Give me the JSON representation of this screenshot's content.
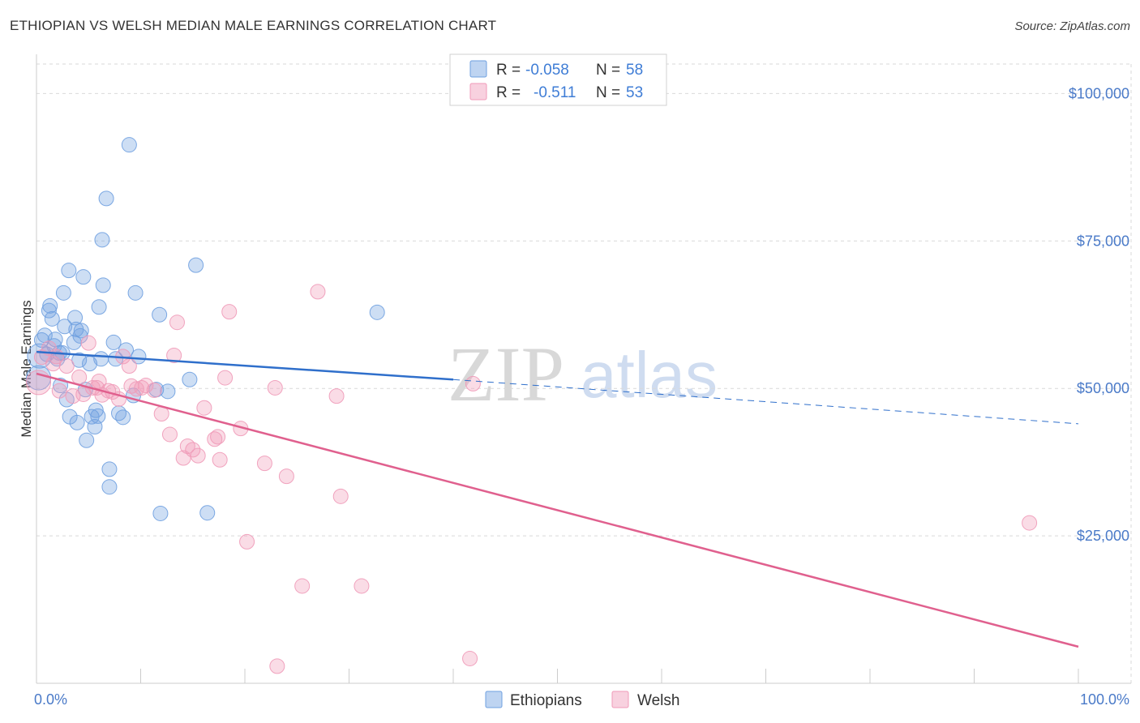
{
  "header": {
    "title": "ETHIOPIAN VS WELSH MEDIAN MALE EARNINGS CORRELATION CHART",
    "source": "Source: ZipAtlas.com"
  },
  "watermark": {
    "zip": "ZIP",
    "atlas": "atlas"
  },
  "colors": {
    "ethiopians": "#6fa0e0",
    "ethiopians_line": "#2f6fcb",
    "welsh": "#f09ab8",
    "welsh_line": "#e0608e",
    "grid": "#d9d9d9",
    "tick_text": "#4a7ac8"
  },
  "legend": {
    "r_label": "R =",
    "n_label": "N =",
    "rows": [
      {
        "series": "Ethiopians",
        "r": "-0.058",
        "n": "58"
      },
      {
        "series": "Welsh",
        "r": "-0.511",
        "n": "53"
      }
    ]
  },
  "chart_data": {
    "type": "scatter",
    "title": "ETHIOPIAN VS WELSH MEDIAN MALE EARNINGS CORRELATION CHART",
    "xlabel": "",
    "ylabel": "Median Male Earnings",
    "xlim": [
      0,
      100
    ],
    "ylim": [
      0,
      105000
    ],
    "x_tick_labels": [
      "0.0%",
      "100.0%"
    ],
    "y_ticks": [
      25000,
      50000,
      75000,
      100000
    ],
    "y_tick_labels": [
      "$25,000",
      "$50,000",
      "$75,000",
      "$100,000"
    ],
    "grid": true,
    "legend_position": "bottom-center",
    "series": [
      {
        "name": "Ethiopians",
        "r": -0.058,
        "n": 58,
        "trend": {
          "x0": 0,
          "y0": 56200,
          "x1": 40,
          "y1": 51500,
          "dash_to_x": 100,
          "dash_to_y": 44000
        },
        "points": [
          [
            0.2,
            51800
          ],
          [
            0.3,
            55500
          ],
          [
            0.5,
            58200
          ],
          [
            0.8,
            59000
          ],
          [
            1.0,
            55800
          ],
          [
            1.2,
            63200
          ],
          [
            1.3,
            64000
          ],
          [
            1.5,
            61800
          ],
          [
            1.7,
            57200
          ],
          [
            1.8,
            58300
          ],
          [
            2.0,
            55000
          ],
          [
            2.2,
            56000
          ],
          [
            2.3,
            50500
          ],
          [
            2.6,
            66200
          ],
          [
            2.7,
            60500
          ],
          [
            2.9,
            48100
          ],
          [
            3.1,
            70000
          ],
          [
            3.2,
            45200
          ],
          [
            3.6,
            57800
          ],
          [
            3.7,
            62000
          ],
          [
            3.8,
            60000
          ],
          [
            3.9,
            44200
          ],
          [
            4.2,
            58900
          ],
          [
            4.3,
            59800
          ],
          [
            4.5,
            68900
          ],
          [
            4.7,
            49800
          ],
          [
            4.8,
            41200
          ],
          [
            5.1,
            54200
          ],
          [
            5.3,
            45200
          ],
          [
            5.6,
            43500
          ],
          [
            5.7,
            46300
          ],
          [
            5.9,
            45300
          ],
          [
            6.0,
            63800
          ],
          [
            6.2,
            55000
          ],
          [
            6.3,
            75200
          ],
          [
            6.4,
            67500
          ],
          [
            6.7,
            82200
          ],
          [
            7.0,
            36300
          ],
          [
            7.0,
            33300
          ],
          [
            7.4,
            57800
          ],
          [
            7.6,
            55000
          ],
          [
            7.9,
            45800
          ],
          [
            8.3,
            45100
          ],
          [
            8.6,
            56500
          ],
          [
            8.9,
            91300
          ],
          [
            9.3,
            48800
          ],
          [
            9.5,
            66200
          ],
          [
            9.8,
            55400
          ],
          [
            11.5,
            49800
          ],
          [
            11.8,
            62500
          ],
          [
            11.9,
            28800
          ],
          [
            12.6,
            49500
          ],
          [
            14.7,
            51500
          ],
          [
            15.3,
            70900
          ],
          [
            16.4,
            28900
          ],
          [
            32.7,
            62900
          ],
          [
            2.5,
            56000
          ],
          [
            4.1,
            54800
          ]
        ]
      },
      {
        "name": "Welsh",
        "r": -0.511,
        "n": 53,
        "trend": {
          "x0": 0,
          "y0": 52500,
          "x1": 100,
          "y1": 6200
        },
        "points": [
          [
            0.2,
            51000
          ],
          [
            0.5,
            55300
          ],
          [
            1.2,
            56800
          ],
          [
            1.6,
            54200
          ],
          [
            1.9,
            55400
          ],
          [
            2.2,
            49600
          ],
          [
            2.9,
            53800
          ],
          [
            3.5,
            48700
          ],
          [
            4.1,
            51900
          ],
          [
            4.5,
            49000
          ],
          [
            5.0,
            57700
          ],
          [
            5.4,
            50100
          ],
          [
            5.8,
            50100
          ],
          [
            6.0,
            51200
          ],
          [
            6.3,
            48900
          ],
          [
            6.9,
            49600
          ],
          [
            7.3,
            49400
          ],
          [
            7.9,
            48200
          ],
          [
            8.3,
            55400
          ],
          [
            8.9,
            53800
          ],
          [
            9.1,
            50400
          ],
          [
            9.6,
            49900
          ],
          [
            10.1,
            50100
          ],
          [
            10.5,
            50500
          ],
          [
            11.3,
            49700
          ],
          [
            12.0,
            45700
          ],
          [
            12.8,
            42200
          ],
          [
            13.2,
            55600
          ],
          [
            13.5,
            61200
          ],
          [
            14.1,
            38200
          ],
          [
            14.5,
            40200
          ],
          [
            15.0,
            39600
          ],
          [
            15.5,
            38600
          ],
          [
            16.1,
            46700
          ],
          [
            17.1,
            41400
          ],
          [
            17.6,
            37900
          ],
          [
            18.1,
            51800
          ],
          [
            18.5,
            63000
          ],
          [
            19.6,
            43200
          ],
          [
            20.2,
            24000
          ],
          [
            21.9,
            37300
          ],
          [
            22.9,
            50100
          ],
          [
            24.0,
            35100
          ],
          [
            25.5,
            16500
          ],
          [
            27.0,
            66400
          ],
          [
            28.8,
            48700
          ],
          [
            29.2,
            31700
          ],
          [
            31.2,
            16500
          ],
          [
            41.6,
            4200
          ],
          [
            41.9,
            50800
          ],
          [
            95.3,
            27200
          ],
          [
            23.1,
            2900
          ],
          [
            17.4,
            41800
          ]
        ]
      }
    ]
  },
  "bottom_legend": [
    {
      "label": "Ethiopians"
    },
    {
      "label": "Welsh"
    }
  ]
}
